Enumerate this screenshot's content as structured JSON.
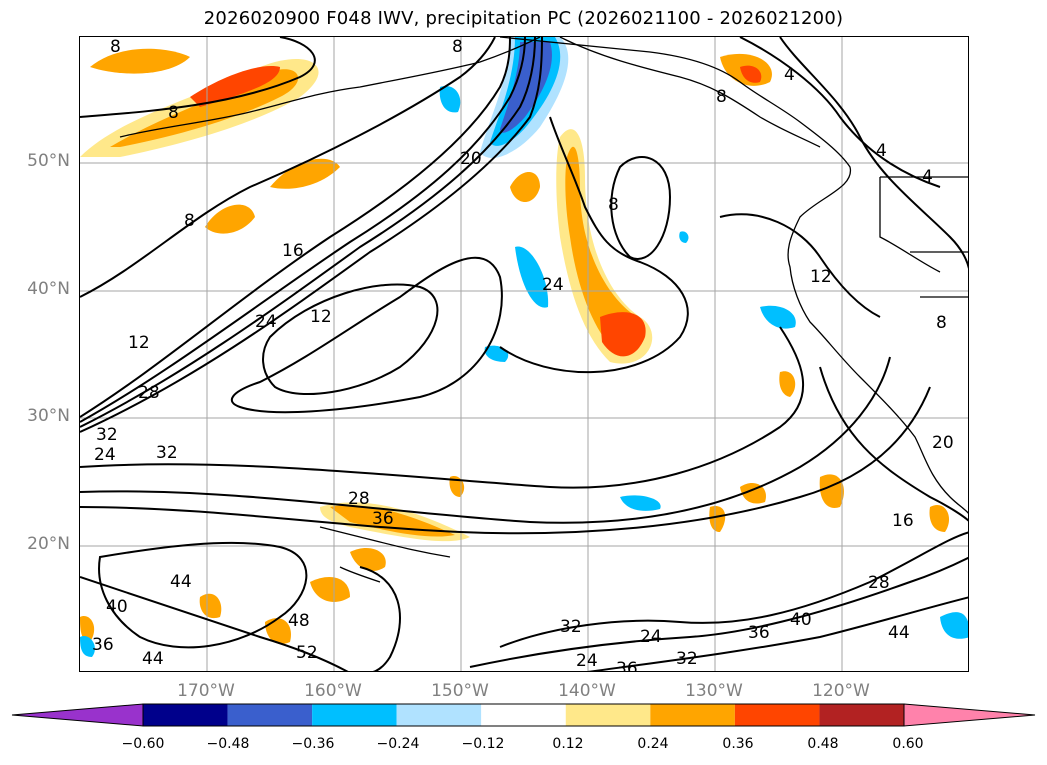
{
  "title": "2026020900 F048 IWV, precipitation PC (2026021100 - 2026021200)",
  "lat_labels": [
    "50°N",
    "40°N",
    "30°N",
    "20°N"
  ],
  "lon_labels": [
    "170°W",
    "160°W",
    "150°W",
    "140°W",
    "130°W",
    "120°W"
  ],
  "contour_labels": [
    "8",
    "8",
    "8",
    "20",
    "16",
    "24",
    "12",
    "12",
    "24",
    "8",
    "28",
    "32",
    "24",
    "32",
    "28",
    "36",
    "44",
    "40",
    "36",
    "48",
    "52",
    "44",
    "12",
    "8",
    "4",
    "4",
    "4",
    "8",
    "16",
    "28",
    "40",
    "36",
    "44",
    "32",
    "24",
    "36",
    "24",
    "32",
    "20",
    "8"
  ],
  "colorbar": {
    "ticks": [
      "−0.60",
      "−0.48",
      "−0.36",
      "−0.24",
      "−0.12",
      "0.12",
      "0.24",
      "0.36",
      "0.48",
      "0.60"
    ],
    "colors": [
      "#9932cc",
      "#00008b",
      "#3a5fcd",
      "#00bfff",
      "#b0e2ff",
      "#ffffff",
      "#ffe88a",
      "#ffa500",
      "#ff4500",
      "#b22222",
      "#ff82ab"
    ]
  }
}
